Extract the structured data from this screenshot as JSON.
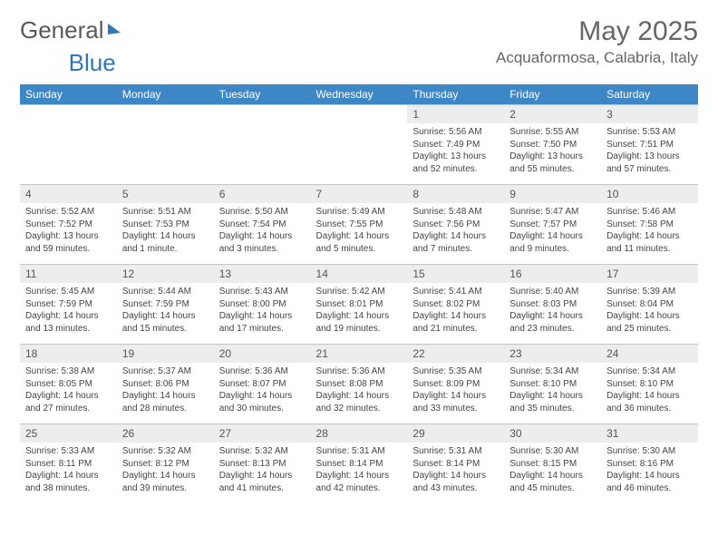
{
  "logo": {
    "part1": "General",
    "part2": "Blue"
  },
  "title": "May 2025",
  "location": "Acquaformosa, Calabria, Italy",
  "colors": {
    "header_bg": "#3d87c7",
    "header_text": "#ffffff",
    "daynum_bg": "#ededed",
    "border": "#c6c6c6",
    "logo_accent": "#2f78b5"
  },
  "day_headers": [
    "Sunday",
    "Monday",
    "Tuesday",
    "Wednesday",
    "Thursday",
    "Friday",
    "Saturday"
  ],
  "weeks": [
    [
      {
        "n": "",
        "sr": "",
        "ss": "",
        "dl": ""
      },
      {
        "n": "",
        "sr": "",
        "ss": "",
        "dl": ""
      },
      {
        "n": "",
        "sr": "",
        "ss": "",
        "dl": ""
      },
      {
        "n": "",
        "sr": "",
        "ss": "",
        "dl": ""
      },
      {
        "n": "1",
        "sr": "Sunrise: 5:56 AM",
        "ss": "Sunset: 7:49 PM",
        "dl": "Daylight: 13 hours and 52 minutes."
      },
      {
        "n": "2",
        "sr": "Sunrise: 5:55 AM",
        "ss": "Sunset: 7:50 PM",
        "dl": "Daylight: 13 hours and 55 minutes."
      },
      {
        "n": "3",
        "sr": "Sunrise: 5:53 AM",
        "ss": "Sunset: 7:51 PM",
        "dl": "Daylight: 13 hours and 57 minutes."
      }
    ],
    [
      {
        "n": "4",
        "sr": "Sunrise: 5:52 AM",
        "ss": "Sunset: 7:52 PM",
        "dl": "Daylight: 13 hours and 59 minutes."
      },
      {
        "n": "5",
        "sr": "Sunrise: 5:51 AM",
        "ss": "Sunset: 7:53 PM",
        "dl": "Daylight: 14 hours and 1 minute."
      },
      {
        "n": "6",
        "sr": "Sunrise: 5:50 AM",
        "ss": "Sunset: 7:54 PM",
        "dl": "Daylight: 14 hours and 3 minutes."
      },
      {
        "n": "7",
        "sr": "Sunrise: 5:49 AM",
        "ss": "Sunset: 7:55 PM",
        "dl": "Daylight: 14 hours and 5 minutes."
      },
      {
        "n": "8",
        "sr": "Sunrise: 5:48 AM",
        "ss": "Sunset: 7:56 PM",
        "dl": "Daylight: 14 hours and 7 minutes."
      },
      {
        "n": "9",
        "sr": "Sunrise: 5:47 AM",
        "ss": "Sunset: 7:57 PM",
        "dl": "Daylight: 14 hours and 9 minutes."
      },
      {
        "n": "10",
        "sr": "Sunrise: 5:46 AM",
        "ss": "Sunset: 7:58 PM",
        "dl": "Daylight: 14 hours and 11 minutes."
      }
    ],
    [
      {
        "n": "11",
        "sr": "Sunrise: 5:45 AM",
        "ss": "Sunset: 7:59 PM",
        "dl": "Daylight: 14 hours and 13 minutes."
      },
      {
        "n": "12",
        "sr": "Sunrise: 5:44 AM",
        "ss": "Sunset: 7:59 PM",
        "dl": "Daylight: 14 hours and 15 minutes."
      },
      {
        "n": "13",
        "sr": "Sunrise: 5:43 AM",
        "ss": "Sunset: 8:00 PM",
        "dl": "Daylight: 14 hours and 17 minutes."
      },
      {
        "n": "14",
        "sr": "Sunrise: 5:42 AM",
        "ss": "Sunset: 8:01 PM",
        "dl": "Daylight: 14 hours and 19 minutes."
      },
      {
        "n": "15",
        "sr": "Sunrise: 5:41 AM",
        "ss": "Sunset: 8:02 PM",
        "dl": "Daylight: 14 hours and 21 minutes."
      },
      {
        "n": "16",
        "sr": "Sunrise: 5:40 AM",
        "ss": "Sunset: 8:03 PM",
        "dl": "Daylight: 14 hours and 23 minutes."
      },
      {
        "n": "17",
        "sr": "Sunrise: 5:39 AM",
        "ss": "Sunset: 8:04 PM",
        "dl": "Daylight: 14 hours and 25 minutes."
      }
    ],
    [
      {
        "n": "18",
        "sr": "Sunrise: 5:38 AM",
        "ss": "Sunset: 8:05 PM",
        "dl": "Daylight: 14 hours and 27 minutes."
      },
      {
        "n": "19",
        "sr": "Sunrise: 5:37 AM",
        "ss": "Sunset: 8:06 PM",
        "dl": "Daylight: 14 hours and 28 minutes."
      },
      {
        "n": "20",
        "sr": "Sunrise: 5:36 AM",
        "ss": "Sunset: 8:07 PM",
        "dl": "Daylight: 14 hours and 30 minutes."
      },
      {
        "n": "21",
        "sr": "Sunrise: 5:36 AM",
        "ss": "Sunset: 8:08 PM",
        "dl": "Daylight: 14 hours and 32 minutes."
      },
      {
        "n": "22",
        "sr": "Sunrise: 5:35 AM",
        "ss": "Sunset: 8:09 PM",
        "dl": "Daylight: 14 hours and 33 minutes."
      },
      {
        "n": "23",
        "sr": "Sunrise: 5:34 AM",
        "ss": "Sunset: 8:10 PM",
        "dl": "Daylight: 14 hours and 35 minutes."
      },
      {
        "n": "24",
        "sr": "Sunrise: 5:34 AM",
        "ss": "Sunset: 8:10 PM",
        "dl": "Daylight: 14 hours and 36 minutes."
      }
    ],
    [
      {
        "n": "25",
        "sr": "Sunrise: 5:33 AM",
        "ss": "Sunset: 8:11 PM",
        "dl": "Daylight: 14 hours and 38 minutes."
      },
      {
        "n": "26",
        "sr": "Sunrise: 5:32 AM",
        "ss": "Sunset: 8:12 PM",
        "dl": "Daylight: 14 hours and 39 minutes."
      },
      {
        "n": "27",
        "sr": "Sunrise: 5:32 AM",
        "ss": "Sunset: 8:13 PM",
        "dl": "Daylight: 14 hours and 41 minutes."
      },
      {
        "n": "28",
        "sr": "Sunrise: 5:31 AM",
        "ss": "Sunset: 8:14 PM",
        "dl": "Daylight: 14 hours and 42 minutes."
      },
      {
        "n": "29",
        "sr": "Sunrise: 5:31 AM",
        "ss": "Sunset: 8:14 PM",
        "dl": "Daylight: 14 hours and 43 minutes."
      },
      {
        "n": "30",
        "sr": "Sunrise: 5:30 AM",
        "ss": "Sunset: 8:15 PM",
        "dl": "Daylight: 14 hours and 45 minutes."
      },
      {
        "n": "31",
        "sr": "Sunrise: 5:30 AM",
        "ss": "Sunset: 8:16 PM",
        "dl": "Daylight: 14 hours and 46 minutes."
      }
    ]
  ]
}
